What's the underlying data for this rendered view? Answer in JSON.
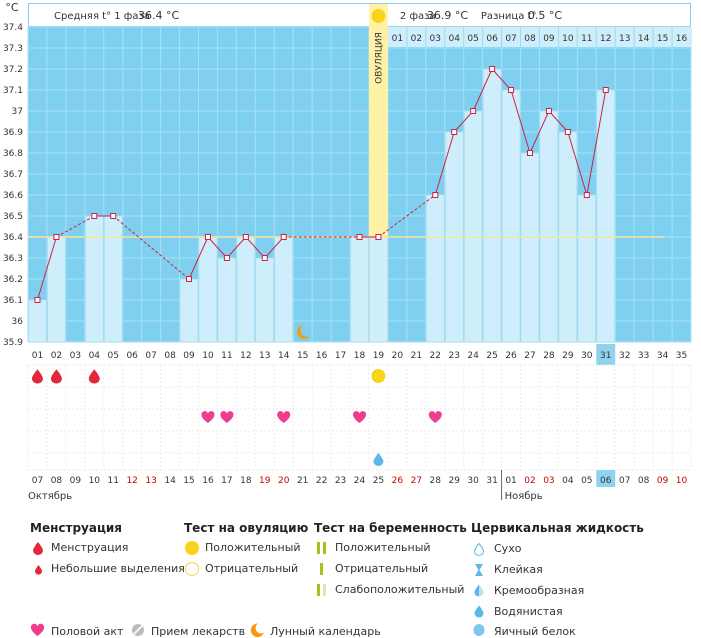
{
  "chart_data": {
    "type": "line",
    "y_unit": "°C",
    "ylim": [
      35.9,
      37.4
    ],
    "y_ticks": [
      "35.9",
      "36",
      "36.1",
      "36.2",
      "36.3",
      "36.4",
      "36.5",
      "36.6",
      "36.7",
      "36.8",
      "36.9",
      "37",
      "37.1",
      "37.2",
      "37.3",
      "37.4"
    ],
    "cycle_days": [
      "01",
      "02",
      "03",
      "04",
      "05",
      "06",
      "07",
      "08",
      "09",
      "10",
      "11",
      "12",
      "13",
      "14",
      "15",
      "16",
      "17",
      "18",
      "19",
      "20",
      "21",
      "22",
      "23",
      "24",
      "25",
      "26",
      "27",
      "28",
      "29",
      "30",
      "31",
      "32",
      "33",
      "34",
      "35"
    ],
    "dates": [
      "07",
      "08",
      "09",
      "10",
      "11",
      "12",
      "13",
      "14",
      "15",
      "16",
      "17",
      "18",
      "19",
      "20",
      "21",
      "22",
      "23",
      "24",
      "25",
      "26",
      "27",
      "28",
      "29",
      "30",
      "31",
      "01",
      "02",
      "03",
      "04",
      "05",
      "06",
      "07",
      "08",
      "09",
      "10"
    ],
    "weekend_date_indices": [
      5,
      6,
      12,
      13,
      19,
      20,
      26,
      27,
      33,
      34
    ],
    "months": [
      "Октябрь",
      "Ноябрь"
    ],
    "temperatures": [
      36.1,
      36.4,
      null,
      36.5,
      36.5,
      null,
      null,
      null,
      36.2,
      36.4,
      36.3,
      36.4,
      36.3,
      36.4,
      null,
      null,
      null,
      36.4,
      36.4,
      null,
      null,
      36.6,
      36.9,
      37.0,
      37.2,
      37.1,
      36.8,
      37.0,
      36.9,
      36.6,
      37.1,
      null,
      null,
      null,
      null
    ],
    "coverline": 36.4,
    "ovulation_day_index": 18,
    "ovulation_label": "ОВУЛЯЦИЯ",
    "today_day_index": 30,
    "phase1": {
      "label": "Средняя t° 1 фаза",
      "value": "36.4 °C"
    },
    "phase2": {
      "label": "2 фаза",
      "value": "36.9 °C"
    },
    "difference": {
      "label": "Разница t°",
      "value": "0.5 °C"
    },
    "phase2_top_numbers": [
      "01",
      "02",
      "03",
      "04",
      "05",
      "06",
      "07",
      "08",
      "09",
      "10",
      "11",
      "12",
      "13",
      "14",
      "15",
      "16"
    ],
    "moon_day_index": 14,
    "events": {
      "menstruation_days": [
        0,
        1,
        3
      ],
      "ovulation_test_positive_days": [
        18
      ],
      "intercourse_days": [
        9,
        10,
        13,
        17,
        21
      ],
      "cervical_watery_days": [
        18
      ]
    }
  },
  "legend": {
    "menstruation": {
      "title": "Менструация",
      "items": [
        "Менструация",
        "Небольшие выделения"
      ]
    },
    "ovulation_test": {
      "title": "Тест на овуляцию",
      "items": [
        "Положительный",
        "Отрицательный"
      ]
    },
    "pregnancy_test": {
      "title": "Тест на беременность",
      "items": [
        "Положительный",
        "Отрицательный",
        "Слабоположительный"
      ]
    },
    "cervical_fluid": {
      "title": "Цервикальная жидкость",
      "items": [
        "Сухо",
        "Клейкая",
        "Кремообразная",
        "Водянистая",
        "Яичный белок"
      ]
    },
    "bottom": [
      "Половой акт",
      "Прием лекарств",
      "Лунный календарь"
    ]
  },
  "colors": {
    "plot_bg": "#7fd0f0",
    "grid": "#a8e0f5",
    "bar_fill": "#cdeefa",
    "line": "#cc2244",
    "coverline": "#f4e69a",
    "ovulation": "#fff2a6",
    "today": "#8fd3ef",
    "menstruation": "#e3283c",
    "heart": "#ee3d8c",
    "sun": "#f7d31c",
    "moon": "#f39c12",
    "watery": "#5bb8e8",
    "weekend": "#cc0000",
    "pregnancy_pos": "#a6c21f",
    "pregnancy_weak": "#dde7a8"
  }
}
